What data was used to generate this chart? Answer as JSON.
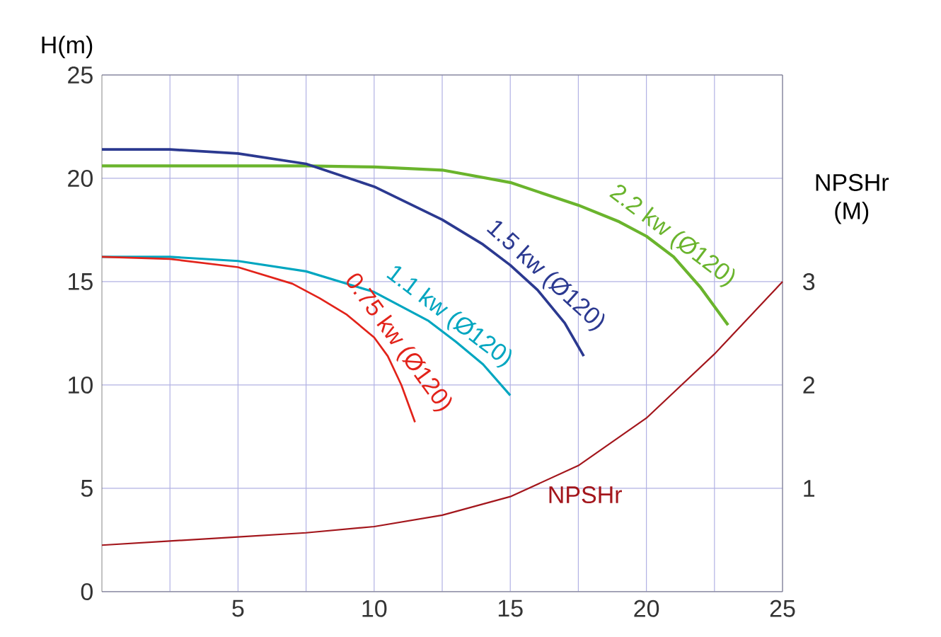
{
  "chart_data": {
    "type": "line",
    "ylabel": "H(m)",
    "y2label": "NPSHr (M)",
    "xlim": [
      0,
      25
    ],
    "ylim": [
      0,
      25
    ],
    "y2lim": [
      0,
      5
    ],
    "xticks": [
      {
        "value": 2.5,
        "label": null
      },
      5,
      {
        "value": 7.5,
        "label": null
      },
      10,
      {
        "value": 12.5,
        "label": null
      },
      15,
      {
        "value": 17.5,
        "label": null
      },
      20,
      {
        "value": 22.5,
        "label": null
      },
      25
    ],
    "yticks": [
      0,
      5,
      10,
      15,
      20,
      25
    ],
    "y2ticks": [
      1,
      2,
      3
    ],
    "grid": true,
    "series": [
      {
        "name": "2.2 kw (Ø120)",
        "color": "#6ab42d",
        "x": [
          0,
          2.5,
          5,
          7.5,
          10,
          12.5,
          15,
          17.5,
          19,
          20,
          21,
          22,
          23
        ],
        "values": [
          20.6,
          20.6,
          20.6,
          20.6,
          20.55,
          20.4,
          19.8,
          18.7,
          17.9,
          17.2,
          16.2,
          14.7,
          12.9
        ]
      },
      {
        "name": "1.5 kw (Ø120)",
        "color": "#2b3990",
        "x": [
          0,
          2.5,
          5,
          7.5,
          10,
          12.5,
          14,
          15,
          16,
          17,
          17.7
        ],
        "values": [
          21.4,
          21.4,
          21.2,
          20.7,
          19.6,
          18.0,
          16.8,
          15.8,
          14.6,
          13.0,
          11.4
        ]
      },
      {
        "name": "1.1 kw (Ø120)",
        "color": "#00a6c0",
        "x": [
          0,
          2.5,
          5,
          7.5,
          10,
          12,
          13,
          14,
          15
        ],
        "values": [
          16.2,
          16.2,
          16.0,
          15.5,
          14.5,
          13.1,
          12.1,
          11.0,
          9.5
        ]
      },
      {
        "name": "0.75 kw (Ø120)",
        "color": "#e2231a",
        "x": [
          0,
          2.5,
          5,
          7,
          8,
          9,
          10,
          10.5,
          11,
          11.5
        ],
        "values": [
          16.2,
          16.1,
          15.7,
          14.9,
          14.2,
          13.4,
          12.3,
          11.4,
          10.0,
          8.2
        ]
      },
      {
        "name": "NPSHr",
        "color": "#a3161c",
        "axis": "y2",
        "x": [
          0,
          2.5,
          5,
          7.5,
          10,
          12.5,
          15,
          17.5,
          20,
          22.5,
          25
        ],
        "values": [
          0.45,
          0.49,
          0.53,
          0.57,
          0.63,
          0.74,
          0.92,
          1.22,
          1.68,
          2.3,
          3.0
        ]
      }
    ]
  }
}
